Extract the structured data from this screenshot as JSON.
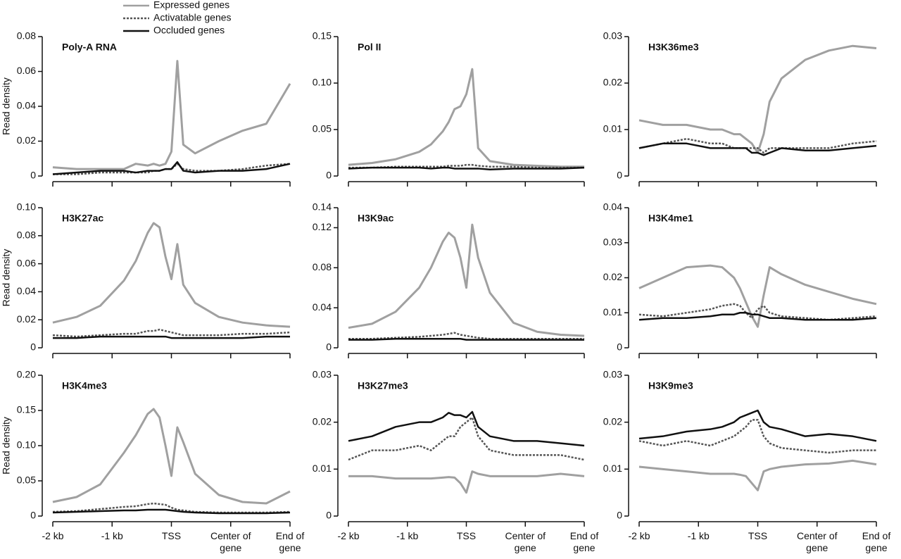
{
  "chart_data": [
    {
      "type": "line",
      "title": "Poly-A RNA",
      "y_label": "Read density",
      "legend": true,
      "x": [
        0,
        4,
        8,
        12,
        14,
        16,
        17,
        18,
        19,
        20,
        21,
        22,
        24,
        28,
        32,
        36,
        40
      ],
      "xlim": [
        0,
        40
      ],
      "xticks": [
        0,
        10,
        20,
        30,
        40
      ],
      "ylim": [
        0,
        0.08
      ],
      "yticks": [
        0,
        0.02,
        0.04,
        0.06,
        0.08
      ],
      "series": [
        {
          "name": "Expressed genes",
          "color": "#a0a0a0",
          "style": "solid",
          "values": [
            0.005,
            0.004,
            0.004,
            0.004,
            0.007,
            0.006,
            0.007,
            0.006,
            0.007,
            0.014,
            0.066,
            0.018,
            0.013,
            0.02,
            0.026,
            0.03,
            0.053
          ]
        },
        {
          "name": "Activatable genes",
          "color": "#555555",
          "style": "dotted",
          "values": [
            0.001,
            0.001,
            0.002,
            0.002,
            0.002,
            0.002,
            0.003,
            0.003,
            0.004,
            0.004,
            0.007,
            0.004,
            0.003,
            0.003,
            0.004,
            0.006,
            0.007
          ]
        },
        {
          "name": "Occluded genes",
          "color": "#111111",
          "style": "solid",
          "values": [
            0.001,
            0.002,
            0.003,
            0.003,
            0.002,
            0.003,
            0.003,
            0.003,
            0.004,
            0.004,
            0.008,
            0.003,
            0.002,
            0.003,
            0.003,
            0.004,
            0.007
          ]
        }
      ]
    },
    {
      "type": "line",
      "title": "Pol II",
      "x": [
        0,
        4,
        8,
        12,
        14,
        16,
        17,
        18,
        19,
        20,
        21,
        22,
        24,
        28,
        32,
        36,
        40
      ],
      "xlim": [
        0,
        40
      ],
      "xticks": [
        0,
        10,
        20,
        30,
        40
      ],
      "ylim": [
        0,
        0.15
      ],
      "yticks": [
        0,
        0.05,
        {
          "value": 0.1,
          "label": "0.10"
        },
        0.15
      ],
      "series": [
        {
          "color": "#a0a0a0",
          "style": "solid",
          "values": [
            0.012,
            0.014,
            0.018,
            0.026,
            0.034,
            0.048,
            0.058,
            0.072,
            0.075,
            0.088,
            0.115,
            0.03,
            0.016,
            0.012,
            0.011,
            0.01,
            0.01
          ]
        },
        {
          "color": "#555555",
          "style": "dotted",
          "values": [
            0.009,
            0.009,
            0.01,
            0.01,
            0.01,
            0.01,
            0.011,
            0.011,
            0.011,
            0.012,
            0.012,
            0.011,
            0.01,
            0.01,
            0.009,
            0.009,
            0.009
          ]
        },
        {
          "color": "#111111",
          "style": "solid",
          "values": [
            0.008,
            0.009,
            0.009,
            0.009,
            0.008,
            0.009,
            0.009,
            0.008,
            0.008,
            0.008,
            0.008,
            0.008,
            0.007,
            0.008,
            0.008,
            0.008,
            0.009
          ]
        }
      ]
    },
    {
      "type": "line",
      "title": "H3K36me3",
      "x": [
        0,
        4,
        8,
        12,
        14,
        16,
        17,
        18,
        19,
        20,
        21,
        22,
        24,
        28,
        32,
        36,
        40
      ],
      "xlim": [
        0,
        40
      ],
      "xticks": [
        0,
        10,
        20,
        30,
        40
      ],
      "ylim": [
        0,
        0.03
      ],
      "yticks": [
        0,
        0.01,
        0.02,
        0.03
      ],
      "series": [
        {
          "color": "#a0a0a0",
          "style": "solid",
          "values": [
            0.012,
            0.011,
            0.011,
            0.01,
            0.01,
            0.009,
            0.009,
            0.008,
            0.007,
            0.005,
            0.009,
            0.016,
            0.021,
            0.025,
            0.027,
            0.028,
            0.0275
          ]
        },
        {
          "color": "#555555",
          "style": "dotted",
          "values": [
            0.006,
            0.007,
            0.008,
            0.007,
            0.007,
            0.006,
            0.006,
            0.006,
            0.006,
            0.006,
            0.005,
            0.006,
            0.006,
            0.006,
            0.006,
            0.007,
            0.0075
          ]
        },
        {
          "color": "#111111",
          "style": "solid",
          "values": [
            0.006,
            0.007,
            0.007,
            0.006,
            0.006,
            0.006,
            0.006,
            0.006,
            0.005,
            0.005,
            0.0045,
            0.005,
            0.006,
            0.0055,
            0.0055,
            0.006,
            0.0065
          ]
        }
      ]
    },
    {
      "type": "line",
      "title": "H3K27ac",
      "y_label": "Read density",
      "x": [
        0,
        4,
        8,
        12,
        14,
        16,
        17,
        18,
        19,
        20,
        21,
        22,
        24,
        28,
        32,
        36,
        40
      ],
      "xlim": [
        0,
        40
      ],
      "xticks": [
        0,
        10,
        20,
        30,
        40
      ],
      "ylim": [
        0,
        0.1
      ],
      "yticks": [
        0,
        0.02,
        0.04,
        0.06,
        0.08,
        {
          "value": 0.1,
          "label": "0.10"
        }
      ],
      "series": [
        {
          "color": "#a0a0a0",
          "style": "solid",
          "values": [
            0.018,
            0.022,
            0.03,
            0.048,
            0.062,
            0.082,
            0.089,
            0.086,
            0.065,
            0.049,
            0.074,
            0.045,
            0.032,
            0.022,
            0.018,
            0.016,
            0.015
          ]
        },
        {
          "color": "#555555",
          "style": "dotted",
          "values": [
            0.009,
            0.008,
            0.009,
            0.01,
            0.01,
            0.012,
            0.012,
            0.013,
            0.012,
            0.011,
            0.01,
            0.009,
            0.009,
            0.009,
            0.01,
            0.01,
            0.011
          ]
        },
        {
          "color": "#111111",
          "style": "solid",
          "values": [
            0.007,
            0.007,
            0.008,
            0.008,
            0.008,
            0.008,
            0.008,
            0.008,
            0.008,
            0.007,
            0.007,
            0.007,
            0.007,
            0.007,
            0.007,
            0.008,
            0.008
          ]
        }
      ]
    },
    {
      "type": "line",
      "title": "H3K9ac",
      "x": [
        0,
        4,
        8,
        12,
        14,
        16,
        17,
        18,
        19,
        20,
        21,
        22,
        24,
        28,
        32,
        36,
        40
      ],
      "xlim": [
        0,
        40
      ],
      "xticks": [
        0,
        10,
        20,
        30,
        40
      ],
      "ylim": [
        0,
        0.14
      ],
      "yticks": [
        0,
        0.04,
        0.08,
        0.12,
        0.14
      ],
      "series": [
        {
          "color": "#a0a0a0",
          "style": "solid",
          "values": [
            0.02,
            0.024,
            0.036,
            0.06,
            0.08,
            0.106,
            0.115,
            0.11,
            0.09,
            0.06,
            0.123,
            0.09,
            0.055,
            0.025,
            0.016,
            0.013,
            0.012
          ]
        },
        {
          "color": "#555555",
          "style": "dotted",
          "values": [
            0.009,
            0.009,
            0.01,
            0.011,
            0.012,
            0.013,
            0.014,
            0.015,
            0.013,
            0.012,
            0.011,
            0.01,
            0.009,
            0.009,
            0.009,
            0.009,
            0.009
          ]
        },
        {
          "color": "#111111",
          "style": "solid",
          "values": [
            0.008,
            0.008,
            0.009,
            0.009,
            0.009,
            0.009,
            0.009,
            0.009,
            0.009,
            0.008,
            0.008,
            0.008,
            0.008,
            0.008,
            0.008,
            0.008,
            0.008
          ]
        }
      ]
    },
    {
      "type": "line",
      "title": "H3K4me1",
      "x": [
        0,
        4,
        8,
        12,
        14,
        16,
        17,
        18,
        19,
        20,
        21,
        22,
        24,
        28,
        32,
        36,
        40
      ],
      "xlim": [
        0,
        40
      ],
      "xticks": [
        0,
        10,
        20,
        30,
        40
      ],
      "ylim": [
        0,
        0.04
      ],
      "yticks": [
        0,
        0.01,
        0.02,
        0.03,
        0.04
      ],
      "series": [
        {
          "color": "#a0a0a0",
          "style": "solid",
          "values": [
            0.017,
            0.02,
            0.023,
            0.0235,
            0.023,
            0.02,
            0.017,
            0.013,
            0.009,
            0.006,
            0.015,
            0.023,
            0.021,
            0.018,
            0.016,
            0.014,
            0.0125
          ]
        },
        {
          "color": "#555555",
          "style": "dotted",
          "values": [
            0.0095,
            0.009,
            0.01,
            0.011,
            0.012,
            0.0125,
            0.012,
            0.01,
            0.0085,
            0.011,
            0.012,
            0.01,
            0.009,
            0.0085,
            0.008,
            0.0085,
            0.009
          ]
        },
        {
          "color": "#111111",
          "style": "solid",
          "values": [
            0.008,
            0.0085,
            0.0085,
            0.009,
            0.0095,
            0.0095,
            0.01,
            0.01,
            0.0095,
            0.0095,
            0.009,
            0.0085,
            0.0085,
            0.008,
            0.008,
            0.008,
            0.0085
          ]
        }
      ]
    },
    {
      "type": "line",
      "title": "H3K4me3",
      "y_label": "Read density",
      "x": [
        0,
        4,
        8,
        12,
        14,
        16,
        17,
        18,
        19,
        20,
        21,
        22,
        24,
        28,
        32,
        36,
        40
      ],
      "xlim": [
        0,
        40
      ],
      "xticks": [
        {
          "value": 0,
          "label": "-2 kb"
        },
        {
          "value": 10,
          "label": "-1 kb"
        },
        {
          "value": 20,
          "label": "TSS"
        },
        {
          "value": 30,
          "label": "Center of gene"
        },
        {
          "value": 40,
          "label": "End of gene"
        }
      ],
      "ylim": [
        0,
        0.2
      ],
      "yticks": [
        0,
        0.05,
        {
          "value": 0.1,
          "label": "0.10"
        },
        0.15,
        {
          "value": 0.2,
          "label": "0.20"
        }
      ],
      "series": [
        {
          "color": "#a0a0a0",
          "style": "solid",
          "values": [
            0.02,
            0.027,
            0.045,
            0.09,
            0.115,
            0.145,
            0.152,
            0.14,
            0.1,
            0.057,
            0.126,
            0.105,
            0.06,
            0.03,
            0.02,
            0.018,
            0.035
          ]
        },
        {
          "color": "#555555",
          "style": "dotted",
          "values": [
            0.006,
            0.007,
            0.01,
            0.013,
            0.014,
            0.017,
            0.018,
            0.017,
            0.016,
            0.012,
            0.009,
            0.008,
            0.006,
            0.005,
            0.005,
            0.005,
            0.006
          ]
        },
        {
          "color": "#111111",
          "style": "solid",
          "values": [
            0.005,
            0.006,
            0.007,
            0.008,
            0.008,
            0.009,
            0.009,
            0.009,
            0.009,
            0.008,
            0.007,
            0.006,
            0.005,
            0.004,
            0.004,
            0.004,
            0.005
          ]
        }
      ]
    },
    {
      "type": "line",
      "title": "H3K27me3",
      "x": [
        0,
        4,
        8,
        12,
        14,
        16,
        17,
        18,
        19,
        20,
        21,
        22,
        24,
        28,
        32,
        36,
        40
      ],
      "xlim": [
        0,
        40
      ],
      "xticks": [
        {
          "value": 0,
          "label": "-2 kb"
        },
        {
          "value": 10,
          "label": "-1 kb"
        },
        {
          "value": 20,
          "label": "TSS"
        },
        {
          "value": 30,
          "label": "Center of gene"
        },
        {
          "value": 40,
          "label": "End of gene"
        }
      ],
      "ylim": [
        0,
        0.03
      ],
      "yticks": [
        0,
        0.01,
        0.02,
        0.03
      ],
      "series": [
        {
          "color": "#a0a0a0",
          "style": "solid",
          "values": [
            0.0085,
            0.0085,
            0.008,
            0.008,
            0.008,
            0.0082,
            0.0083,
            0.0082,
            0.007,
            0.005,
            0.0095,
            0.009,
            0.0085,
            0.0085,
            0.0085,
            0.009,
            0.0085
          ]
        },
        {
          "color": "#555555",
          "style": "dotted",
          "values": [
            0.012,
            0.014,
            0.014,
            0.015,
            0.014,
            0.016,
            0.017,
            0.017,
            0.019,
            0.02,
            0.021,
            0.017,
            0.014,
            0.013,
            0.013,
            0.013,
            0.012
          ]
        },
        {
          "color": "#111111",
          "style": "solid",
          "values": [
            0.016,
            0.017,
            0.019,
            0.02,
            0.02,
            0.021,
            0.022,
            0.0215,
            0.0215,
            0.021,
            0.0222,
            0.019,
            0.017,
            0.016,
            0.016,
            0.0155,
            0.015
          ]
        }
      ]
    },
    {
      "type": "line",
      "title": "H3K9me3",
      "x": [
        0,
        4,
        8,
        12,
        14,
        16,
        17,
        18,
        19,
        20,
        21,
        22,
        24,
        28,
        32,
        36,
        40
      ],
      "xlim": [
        0,
        40
      ],
      "xticks": [
        {
          "value": 0,
          "label": "-2 kb"
        },
        {
          "value": 10,
          "label": "-1 kb"
        },
        {
          "value": 20,
          "label": "TSS"
        },
        {
          "value": 30,
          "label": "Center of gene"
        },
        {
          "value": 40,
          "label": "End of gene"
        }
      ],
      "ylim": [
        0,
        0.03
      ],
      "yticks": [
        0,
        0.01,
        0.02,
        0.03
      ],
      "series": [
        {
          "color": "#a0a0a0",
          "style": "solid",
          "values": [
            0.0105,
            0.01,
            0.0095,
            0.009,
            0.009,
            0.009,
            0.0088,
            0.0085,
            0.007,
            0.0055,
            0.0095,
            0.01,
            0.0105,
            0.011,
            0.0112,
            0.0118,
            0.011
          ]
        },
        {
          "color": "#555555",
          "style": "dotted",
          "values": [
            0.016,
            0.015,
            0.016,
            0.015,
            0.016,
            0.017,
            0.018,
            0.019,
            0.0205,
            0.0205,
            0.017,
            0.0155,
            0.0145,
            0.014,
            0.0135,
            0.014,
            0.014
          ]
        },
        {
          "color": "#111111",
          "style": "solid",
          "values": [
            0.0165,
            0.017,
            0.018,
            0.0185,
            0.019,
            0.02,
            0.021,
            0.0215,
            0.022,
            0.0225,
            0.02,
            0.019,
            0.0185,
            0.017,
            0.0175,
            0.017,
            0.016
          ]
        }
      ]
    }
  ]
}
